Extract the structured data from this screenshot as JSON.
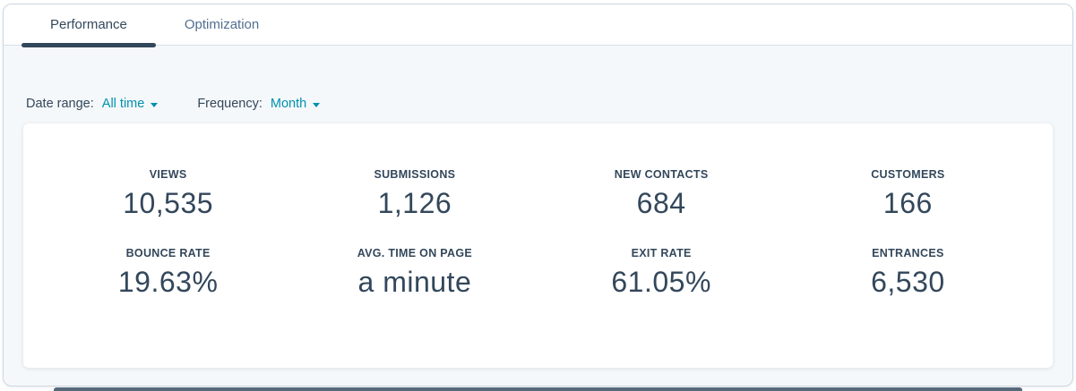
{
  "tabs": [
    {
      "label": "Performance",
      "active": true
    },
    {
      "label": "Optimization",
      "active": false
    }
  ],
  "filters": {
    "date_range": {
      "label": "Date range:",
      "value": "All time"
    },
    "frequency": {
      "label": "Frequency:",
      "value": "Month"
    }
  },
  "metrics": [
    {
      "label": "VIEWS",
      "value": "10,535"
    },
    {
      "label": "SUBMISSIONS",
      "value": "1,126"
    },
    {
      "label": "NEW CONTACTS",
      "value": "684"
    },
    {
      "label": "CUSTOMERS",
      "value": "166"
    },
    {
      "label": "BOUNCE RATE",
      "value": "19.63%"
    },
    {
      "label": "AVG. TIME ON PAGE",
      "value": "a minute"
    },
    {
      "label": "EXIT RATE",
      "value": "61.05%"
    },
    {
      "label": "ENTRANCES",
      "value": "6,530"
    }
  ],
  "colors": {
    "accent_teal": "#0091ae",
    "text_dark": "#33475b",
    "text_inactive": "#516f90",
    "page_background": "#f5f8fa",
    "card_background": "#ffffff",
    "tab_underline": "#33475b",
    "panel_border": "#cbd6e2"
  }
}
